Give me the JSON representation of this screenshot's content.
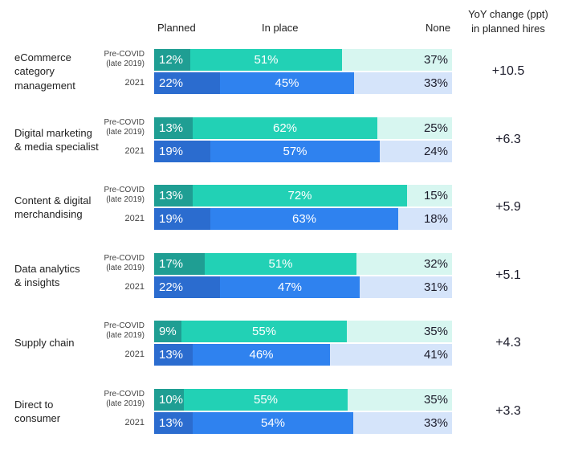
{
  "chart_data": {
    "type": "stacked-bar-horizontal",
    "legend": [
      "Planned",
      "In place",
      "None"
    ],
    "yoy_header": [
      "YoY change (ppt)",
      "in planned hires"
    ],
    "period_labels": {
      "pre": [
        "Pre-COVID",
        "(late 2019)"
      ],
      "now": "2021"
    },
    "colors": {
      "pre_planned": "#1f9e93",
      "pre_inplace": "#22d1b5",
      "pre_none": "#d7f6f0",
      "now_planned": "#2b6ccf",
      "now_inplace": "#2f82ef",
      "now_none": "#d5e4fa"
    },
    "categories": [
      {
        "label": [
          "eCommerce",
          "category",
          "management"
        ],
        "pre": [
          12,
          51,
          37
        ],
        "now": [
          22,
          45,
          33
        ],
        "yoy": "+10.5"
      },
      {
        "label": [
          "Digital marketing",
          "& media specialist"
        ],
        "pre": [
          13,
          62,
          25
        ],
        "now": [
          19,
          57,
          24
        ],
        "yoy": "+6.3"
      },
      {
        "label": [
          "Content & digital",
          "merchandising"
        ],
        "pre": [
          13,
          72,
          15
        ],
        "now": [
          19,
          63,
          18
        ],
        "yoy": "+5.9"
      },
      {
        "label": [
          "Data analytics",
          "& insights"
        ],
        "pre": [
          17,
          51,
          32
        ],
        "now": [
          22,
          47,
          31
        ],
        "yoy": "+5.1"
      },
      {
        "label": [
          "Supply chain"
        ],
        "pre": [
          9,
          55,
          35
        ],
        "now": [
          13,
          46,
          41
        ],
        "yoy": "+4.3"
      },
      {
        "label": [
          "Direct to",
          "consumer"
        ],
        "pre": [
          10,
          55,
          35
        ],
        "now": [
          13,
          54,
          33
        ],
        "yoy": "+3.3"
      }
    ]
  }
}
